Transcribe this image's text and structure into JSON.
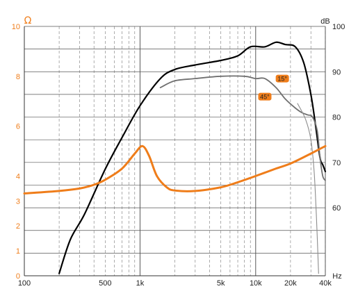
{
  "chart_data": {
    "type": "line",
    "x_axis": {
      "scale": "log",
      "range": [
        100,
        40000
      ],
      "unit_label": "Hz",
      "tick_labels": [
        {
          "value": 100,
          "label": "100"
        },
        {
          "value": 500,
          "label": "500"
        },
        {
          "value": 1000,
          "label": "1k"
        },
        {
          "value": 5000,
          "label": "5k"
        },
        {
          "value": 10000,
          "label": "10k"
        },
        {
          "value": 20000,
          "label": "20k"
        },
        {
          "value": 40000,
          "label": "40k"
        }
      ]
    },
    "y_left": {
      "unit_label": "Ω",
      "range": [
        0,
        10
      ],
      "color": "#ef7d1a",
      "ticks": [
        {
          "value": 0,
          "label": "0"
        },
        {
          "value": 1,
          "label": "1"
        },
        {
          "value": 2,
          "label": "2"
        },
        {
          "value": 3,
          "label": "3"
        },
        {
          "value": 4,
          "label": "4"
        },
        {
          "value": 6,
          "label": "6"
        },
        {
          "value": 8,
          "label": "8"
        },
        {
          "value": 10,
          "label": "10"
        }
      ]
    },
    "y_right": {
      "unit_label": "dB",
      "range": [
        45,
        100
      ],
      "color": "#222222",
      "ticks": [
        {
          "value": 60,
          "label": "60"
        },
        {
          "value": 70,
          "label": "70"
        },
        {
          "value": 80,
          "label": "80"
        },
        {
          "value": 90,
          "label": "90"
        },
        {
          "value": 100,
          "label": "100"
        }
      ]
    },
    "grid": true,
    "series": [
      {
        "axis": "right",
        "color": "#000000",
        "width": 2.2,
        "points": [
          [
            200,
            45.5
          ],
          [
            250,
            53
          ],
          [
            330,
            58.5
          ],
          [
            500,
            68.5
          ],
          [
            700,
            75.5
          ],
          [
            1000,
            82.5
          ],
          [
            1500,
            88.5
          ],
          [
            2000,
            90.5
          ],
          [
            3000,
            91.5
          ],
          [
            5000,
            92.5
          ],
          [
            7000,
            93.5
          ],
          [
            9000,
            95.5
          ],
          [
            12000,
            95.5
          ],
          [
            15000,
            96.5
          ],
          [
            18000,
            96
          ],
          [
            22000,
            95.5
          ],
          [
            26000,
            92
          ],
          [
            30000,
            85
          ],
          [
            33000,
            78
          ],
          [
            36000,
            71
          ],
          [
            38000,
            69.5
          ],
          [
            40000,
            68
          ]
        ]
      },
      {
        "axis": "right",
        "color": "#707070",
        "width": 1.8,
        "points": [
          [
            1500,
            86.5
          ],
          [
            2000,
            88
          ],
          [
            3000,
            88.5
          ],
          [
            5000,
            89
          ],
          [
            8000,
            89
          ],
          [
            10000,
            88.5
          ],
          [
            12000,
            88.5
          ],
          [
            15000,
            86.5
          ],
          [
            18000,
            84
          ],
          [
            22000,
            82
          ],
          [
            25000,
            81
          ],
          [
            28000,
            80.5
          ],
          [
            31000,
            80
          ],
          [
            34000,
            77
          ],
          [
            36000,
            71
          ],
          [
            38000,
            67
          ],
          [
            40000,
            66
          ]
        ]
      },
      {
        "axis": "right",
        "color": "#8c8c8c",
        "width": 1.1,
        "points": [
          [
            23000,
            83
          ],
          [
            27000,
            79.5
          ],
          [
            30000,
            75
          ],
          [
            32000,
            68
          ],
          [
            33500,
            58
          ],
          [
            35000,
            45.5
          ]
        ]
      },
      {
        "axis": "left",
        "color": "#ef7d1a",
        "width": 3,
        "points": [
          [
            100,
            3.3
          ],
          [
            200,
            3.4
          ],
          [
            300,
            3.5
          ],
          [
            400,
            3.65
          ],
          [
            500,
            3.85
          ],
          [
            700,
            4.3
          ],
          [
            900,
            4.9
          ],
          [
            1050,
            5.2
          ],
          [
            1200,
            4.8
          ],
          [
            1400,
            4.0
          ],
          [
            1700,
            3.55
          ],
          [
            2000,
            3.42
          ],
          [
            3000,
            3.4
          ],
          [
            5000,
            3.55
          ],
          [
            7000,
            3.75
          ],
          [
            10000,
            4.0
          ],
          [
            15000,
            4.3
          ],
          [
            20000,
            4.5
          ],
          [
            30000,
            4.9
          ],
          [
            40000,
            5.2
          ]
        ]
      }
    ],
    "annotations": [
      {
        "text": "15°",
        "x": 17000,
        "y_db": 88.5,
        "axis": "right"
      },
      {
        "text": "45°",
        "x": 12000,
        "y_db": 84.5,
        "axis": "right"
      }
    ]
  }
}
